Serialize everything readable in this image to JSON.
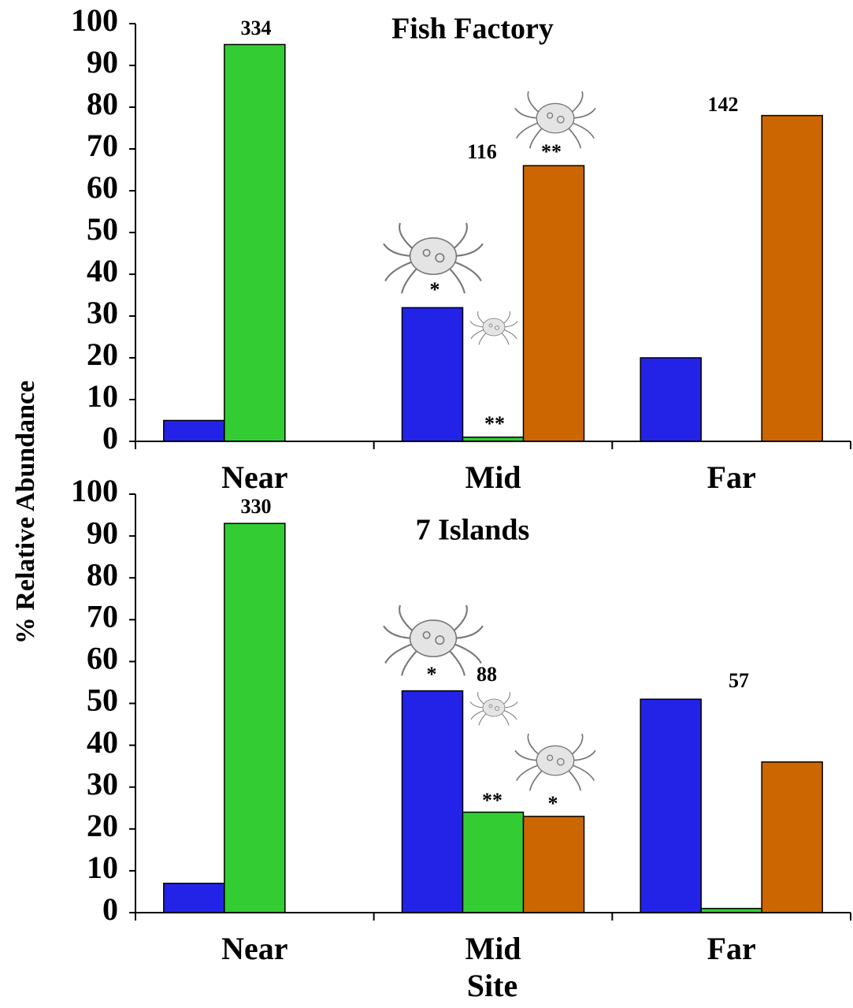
{
  "chart_data": [
    {
      "type": "bar",
      "title": "Fish Factory",
      "ylabel": "% Relative Abundance",
      "categories": [
        "Near",
        "Mid",
        "Far"
      ],
      "series": [
        {
          "color": "#2323e8",
          "values": [
            5,
            32,
            20
          ]
        },
        {
          "color": "#33cc33",
          "values": [
            95,
            1,
            null
          ]
        },
        {
          "color": "#cc6600",
          "values": [
            null,
            66,
            78
          ]
        }
      ],
      "ylim": [
        0,
        100
      ],
      "yticks": [
        0,
        10,
        20,
        30,
        40,
        50,
        60,
        70,
        80,
        90,
        100
      ],
      "annotations": [
        "334",
        "116",
        "**",
        "*",
        "**",
        "142"
      ]
    },
    {
      "type": "bar",
      "title": "7 Islands",
      "xlabel": "Site",
      "categories": [
        "Near",
        "Mid",
        "Far"
      ],
      "series": [
        {
          "color": "#2323e8",
          "values": [
            7,
            53,
            51
          ]
        },
        {
          "color": "#33cc33",
          "values": [
            93,
            24,
            1
          ]
        },
        {
          "color": "#cc6600",
          "values": [
            null,
            23,
            36
          ]
        }
      ],
      "ylim": [
        0,
        100
      ],
      "yticks": [
        0,
        10,
        20,
        30,
        40,
        50,
        60,
        70,
        80,
        90,
        100
      ],
      "annotations": [
        "330",
        "*",
        "88",
        "**",
        "*",
        "57"
      ]
    }
  ]
}
